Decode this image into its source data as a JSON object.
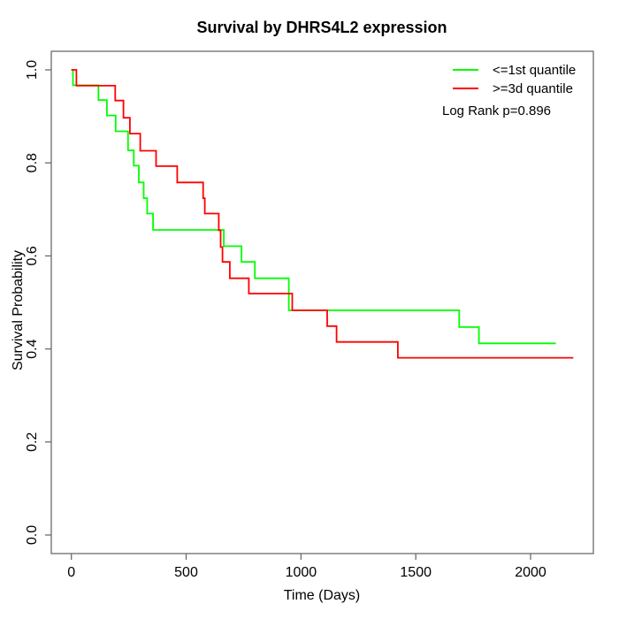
{
  "page": {
    "background": "#ffffff"
  },
  "chart_data": {
    "type": "line",
    "subtype": "kaplan-meier-step",
    "title": "Survival by DHRS4L2 expression",
    "xlabel": "Time (Days)",
    "ylabel": "Survival Probability",
    "x_ticks": [
      0,
      500,
      1000,
      1500,
      2000
    ],
    "x_tick_labels": [
      "0",
      "500",
      "1000",
      "1500",
      "2000"
    ],
    "y_ticks": [
      0,
      0.2,
      0.4,
      0.6,
      0.8,
      1.0
    ],
    "y_tick_labels": [
      "0.0",
      "0.2",
      "0.4",
      "0.6",
      "0.8",
      "1.0"
    ],
    "xlim": [
      0,
      2186
    ],
    "ylim": [
      0,
      1
    ],
    "grid": false,
    "axis_color": "#6b6b6b",
    "text_color": "#000000",
    "legend": {
      "position": "top-right",
      "entries": [
        {
          "label": "<=1st quantile",
          "color": "#00FF00"
        },
        {
          "label": ">=3d quantile",
          "color": "#FF0000"
        }
      ]
    },
    "annotation": "Log Rank p=0.896",
    "series": [
      {
        "name": "<=1st quantile",
        "color": "#00FF00",
        "points": [
          [
            0,
            1.0
          ],
          [
            7,
            0.967
          ],
          [
            118,
            0.935
          ],
          [
            155,
            0.902
          ],
          [
            193,
            0.868
          ],
          [
            247,
            0.827
          ],
          [
            272,
            0.794
          ],
          [
            294,
            0.758
          ],
          [
            315,
            0.724
          ],
          [
            330,
            0.691
          ],
          [
            356,
            0.656
          ],
          [
            664,
            0.621
          ],
          [
            741,
            0.587
          ],
          [
            799,
            0.552
          ],
          [
            947,
            0.483
          ],
          [
            1689,
            0.447
          ],
          [
            1775,
            0.412
          ],
          [
            2110,
            0.412
          ]
        ]
      },
      {
        "name": ">=3d quantile",
        "color": "#FF0000",
        "points": [
          [
            0,
            1.0
          ],
          [
            22,
            0.966
          ],
          [
            191,
            0.934
          ],
          [
            227,
            0.897
          ],
          [
            255,
            0.863
          ],
          [
            300,
            0.826
          ],
          [
            369,
            0.793
          ],
          [
            461,
            0.758
          ],
          [
            574,
            0.724
          ],
          [
            581,
            0.691
          ],
          [
            642,
            0.655
          ],
          [
            650,
            0.619
          ],
          [
            658,
            0.587
          ],
          [
            690,
            0.552
          ],
          [
            773,
            0.519
          ],
          [
            962,
            0.483
          ],
          [
            1114,
            0.449
          ],
          [
            1155,
            0.415
          ],
          [
            1422,
            0.381
          ],
          [
            2186,
            0.381
          ]
        ]
      }
    ]
  }
}
